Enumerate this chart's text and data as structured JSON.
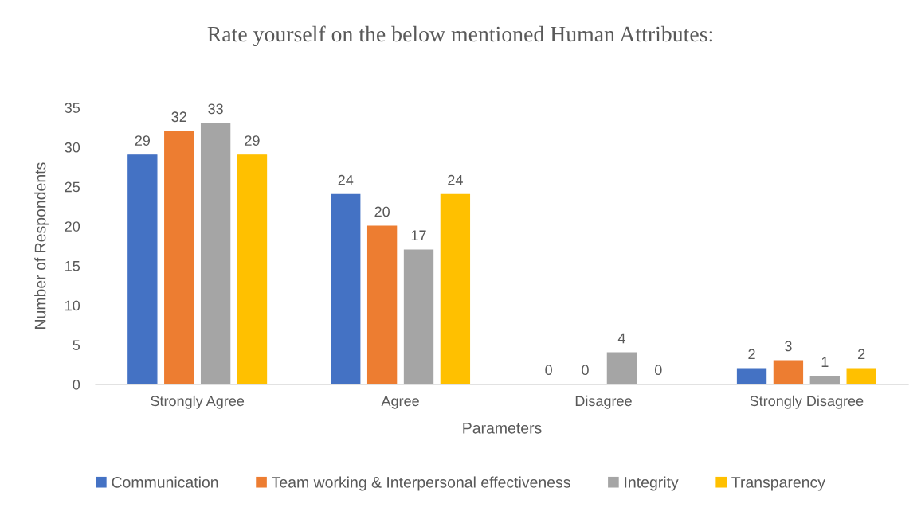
{
  "chart_data": {
    "type": "bar",
    "title": "Rate yourself on the below mentioned Human Attributes:",
    "xlabel": "Parameters",
    "ylabel": "Number of Respondents",
    "categories": [
      "Strongly Agree",
      "Agree",
      "Disagree",
      "Strongly Disagree"
    ],
    "series": [
      {
        "name": "Communication",
        "color": "#4472c4",
        "values": [
          29,
          24,
          0,
          2
        ]
      },
      {
        "name": "Team working & Interpersonal effectiveness",
        "color": "#ed7d31",
        "values": [
          32,
          20,
          0,
          3
        ]
      },
      {
        "name": "Integrity",
        "color": "#a5a5a5",
        "values": [
          33,
          17,
          4,
          1
        ]
      },
      {
        "name": "Transparency",
        "color": "#ffc000",
        "values": [
          29,
          24,
          0,
          2
        ]
      }
    ],
    "ylim": [
      0,
      35
    ],
    "yticks": [
      0,
      5,
      10,
      15,
      20,
      25,
      30,
      35
    ],
    "data_labels": true,
    "grid": false,
    "legend": "bottom"
  }
}
